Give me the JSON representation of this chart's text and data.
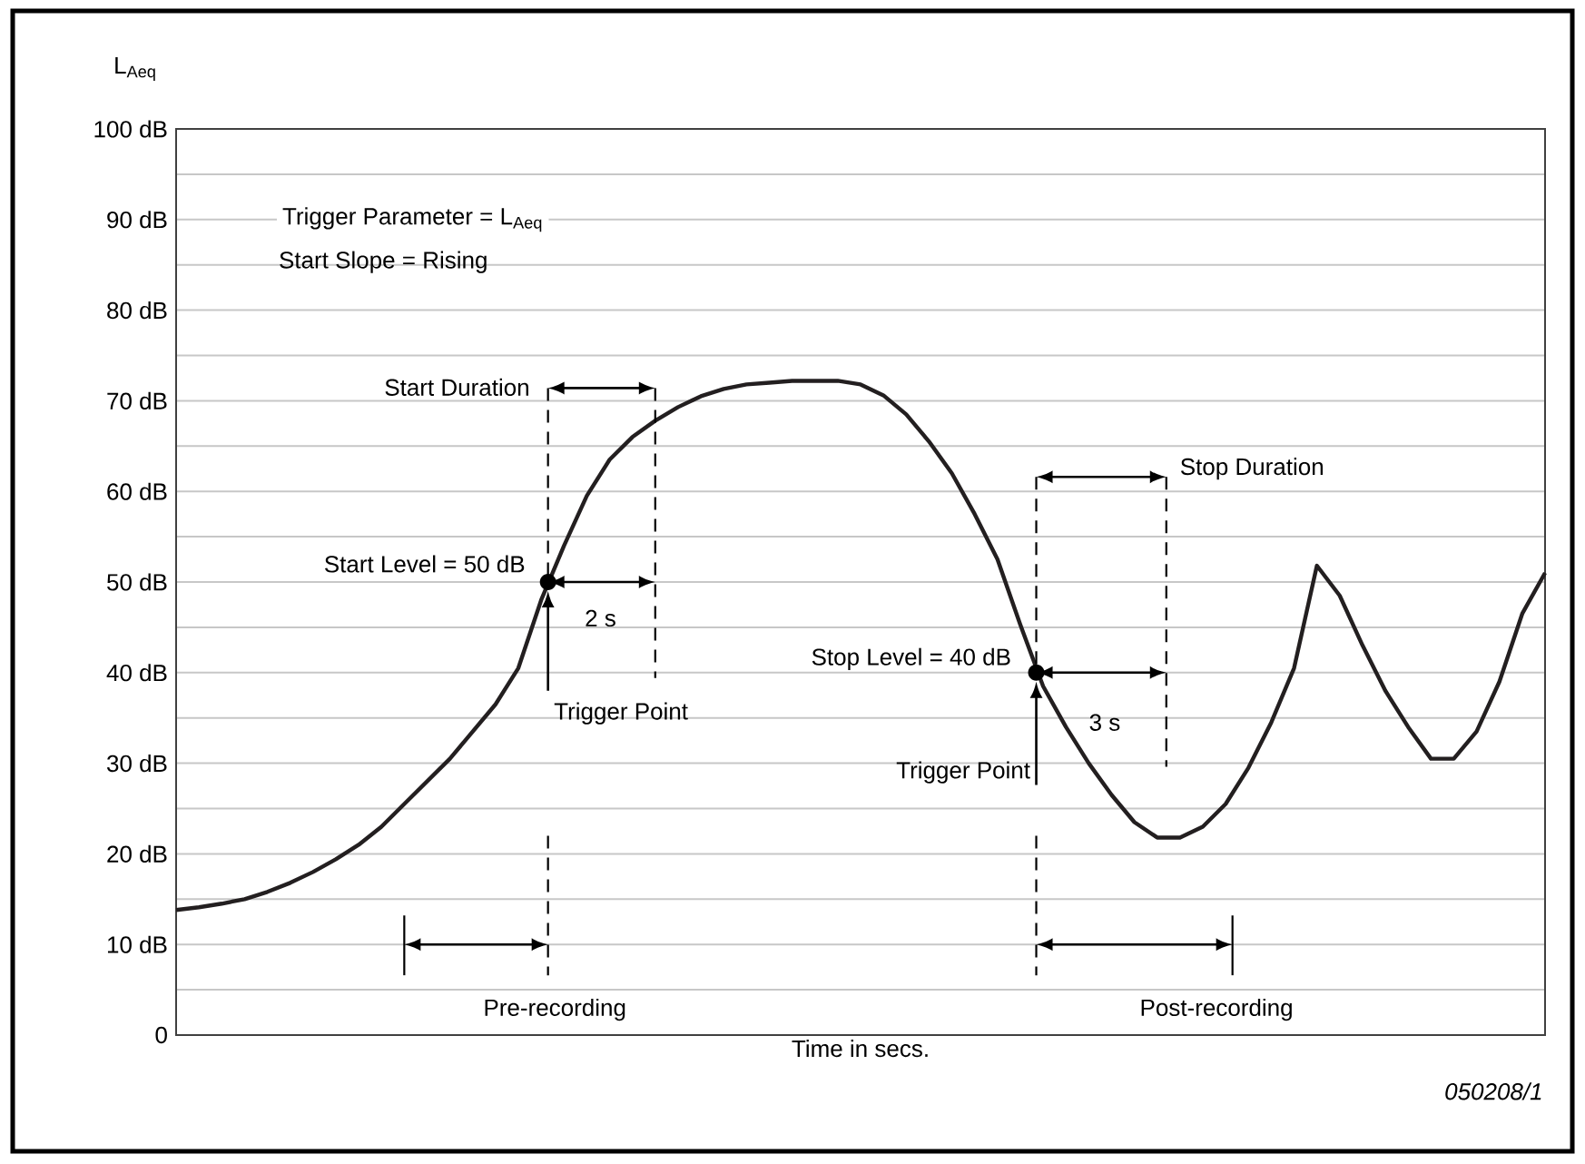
{
  "chart_data": {
    "type": "line",
    "ylabel": "L$_{Aeq}$",
    "xlabel": "Time in secs.",
    "categories": [
      null,
      null,
      null,
      null,
      null,
      null,
      null,
      null,
      null,
      null,
      null,
      null,
      null,
      null,
      null,
      null,
      null,
      null,
      null,
      null,
      null,
      null,
      null,
      null,
      null,
      null,
      null,
      null,
      null,
      null,
      null,
      null,
      null,
      null,
      null,
      null,
      null,
      null,
      null,
      null,
      null,
      null,
      null,
      null,
      null,
      null,
      null,
      null,
      null,
      null,
      null,
      null,
      null,
      null,
      null,
      null,
      null,
      null,
      null,
      null,
      null
    ],
    "series": [
      {
        "color": "#231f20",
        "values": [
          13.8,
          14.1,
          14.5,
          15.0,
          15.8,
          16.8,
          18.0,
          19.4,
          21,
          23,
          25.5,
          28,
          30.5,
          33.5,
          36.5,
          40.5,
          48,
          54,
          59.5,
          63.5,
          66,
          67.8,
          69.3,
          70.5,
          71.3,
          71.8,
          72,
          72.2,
          72.2,
          72.2,
          71.8,
          70.6,
          68.5,
          65.5,
          62,
          57.5,
          52.5,
          45.3,
          38.5,
          34,
          30,
          26.5,
          23.5,
          21.8,
          21.8,
          23,
          25.5,
          29.5,
          34.5,
          40.5,
          51.8,
          48.5,
          43,
          38,
          34,
          30.5,
          30.5,
          33.5,
          39,
          46.5,
          51
        ]
      }
    ],
    "ylim": [
      0,
      100
    ],
    "yticks": [
      0,
      {
        "value": 5,
        "label": null
      },
      {
        "value": 10,
        "label": "10 dB"
      },
      {
        "value": 15,
        "label": null
      },
      {
        "value": 20,
        "label": "20 dB"
      },
      {
        "value": 25,
        "label": null
      },
      {
        "value": 30,
        "label": "30 dB"
      },
      {
        "value": 35,
        "label": null
      },
      {
        "value": 40,
        "label": "40 dB"
      },
      {
        "value": 45,
        "label": null
      },
      {
        "value": 50,
        "label": "50 dB"
      },
      {
        "value": 55,
        "label": null
      },
      {
        "value": 60,
        "label": "60 dB"
      },
      {
        "value": 65,
        "label": null
      },
      {
        "value": 70,
        "label": "70 dB"
      },
      {
        "value": 75,
        "label": null
      },
      {
        "value": 80,
        "label": "80 dB"
      },
      {
        "value": 85,
        "label": null
      },
      {
        "value": 90,
        "label": "90 dB"
      },
      {
        "value": 95,
        "label": null
      },
      {
        "value": 100,
        "label": "100 dB"
      }
    ],
    "grid": "y",
    "annotations": [
      "Trigger Parameter = L$_{Aeq}$",
      "Start Slope = Rising",
      "Start Duration",
      "Start Level = 50 dB",
      "2 s",
      "Trigger Point",
      "Stop Duration",
      "Stop Level = 40 dB",
      "3 s",
      "Trigger Point",
      "Pre-recording",
      "Post-recording",
      "050208/1"
    ]
  }
}
